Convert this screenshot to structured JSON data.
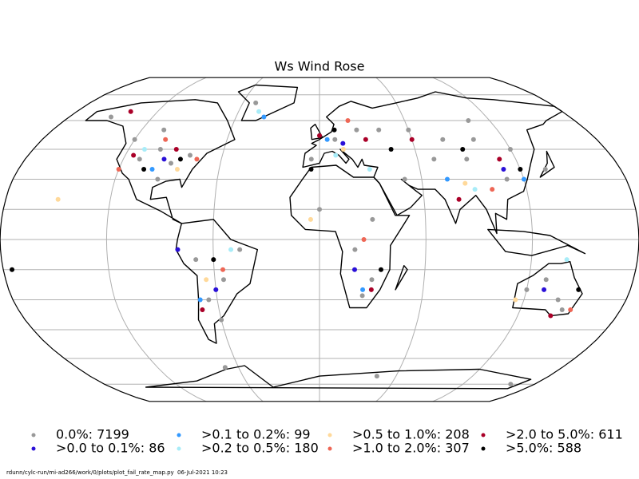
{
  "title": "Ws Wind Rose",
  "map": {
    "projection": "robinson",
    "grid": true
  },
  "categories": [
    {
      "label": "0.0%: 7199",
      "color": "#999999",
      "points": [
        [
          -100,
          45
        ],
        [
          -90,
          38
        ],
        [
          -110,
          40
        ],
        [
          -120,
          50
        ],
        [
          -80,
          42
        ],
        [
          -95,
          30
        ],
        [
          -105,
          55
        ],
        [
          -150,
          62
        ],
        [
          -70,
          -10
        ],
        [
          -55,
          -20
        ],
        [
          -65,
          -30
        ],
        [
          -45,
          -5
        ],
        [
          -60,
          -40
        ],
        [
          10,
          50
        ],
        [
          25,
          55
        ],
        [
          40,
          55
        ],
        [
          60,
          55
        ],
        [
          80,
          50
        ],
        [
          100,
          50
        ],
        [
          120,
          45
        ],
        [
          110,
          30
        ],
        [
          90,
          40
        ],
        [
          70,
          40
        ],
        [
          30,
          10
        ],
        [
          20,
          -5
        ],
        [
          30,
          -20
        ],
        [
          25,
          -28
        ],
        [
          140,
          -30
        ],
        [
          120,
          -25
        ],
        [
          145,
          -35
        ],
        [
          130,
          -20
        ],
        [
          -50,
          70
        ],
        [
          45,
          -70
        ],
        [
          -70,
          -65
        ],
        [
          160,
          -75
        ],
        [
          105,
          60
        ],
        [
          135,
          35
        ],
        [
          0,
          15
        ],
        [
          -5,
          40
        ],
        [
          50,
          30
        ]
      ]
    },
    {
      "label": ">0.0 to 0.1%: 86",
      "color": "#2a10d8",
      "points": [
        [
          -95,
          40
        ],
        [
          15,
          48
        ],
        [
          -60,
          -25
        ],
        [
          110,
          35
        ],
        [
          -80,
          -5
        ],
        [
          130,
          -25
        ],
        [
          20,
          -15
        ]
      ]
    },
    {
      "label": ">0.1 to 0.2%: 99",
      "color": "#3399ff",
      "points": [
        [
          -100,
          35
        ],
        [
          5,
          50
        ],
        [
          -70,
          -30
        ],
        [
          120,
          30
        ],
        [
          25,
          -25
        ],
        [
          -40,
          62
        ],
        [
          75,
          30
        ]
      ]
    },
    {
      "label": ">0.2 to 0.5%: 180",
      "color": "#a8ecf8",
      "points": [
        [
          -110,
          45
        ],
        [
          10,
          42
        ],
        [
          30,
          35
        ],
        [
          -50,
          -5
        ],
        [
          90,
          25
        ],
        [
          140,
          -10
        ],
        [
          -45,
          65
        ]
      ]
    },
    {
      "label": ">0.5 to 1.0%: 208",
      "color": "#ffd99a",
      "points": [
        [
          -85,
          35
        ],
        [
          -150,
          20
        ],
        [
          15,
          45
        ],
        [
          85,
          28
        ],
        [
          -65,
          -20
        ],
        [
          115,
          -30
        ],
        [
          -5,
          10
        ]
      ]
    },
    {
      "label": ">1.0 to 2.0%: 307",
      "color": "#ee6655",
      "points": [
        [
          -100,
          50
        ],
        [
          -75,
          40
        ],
        [
          20,
          60
        ],
        [
          100,
          25
        ],
        [
          -55,
          -15
        ],
        [
          150,
          -35
        ],
        [
          25,
          0
        ],
        [
          -120,
          35
        ]
      ]
    },
    {
      "label": ">2.0 to 5.0%: 611",
      "color": "#aa0028",
      "points": [
        [
          -90,
          45
        ],
        [
          -115,
          42
        ],
        [
          0,
          52
        ],
        [
          30,
          50
        ],
        [
          60,
          50
        ],
        [
          110,
          40
        ],
        [
          -70,
          -35
        ],
        [
          140,
          -38
        ],
        [
          30,
          -25
        ],
        [
          80,
          20
        ],
        [
          -140,
          65
        ]
      ]
    },
    {
      "label": ">5.0%: 588",
      "color": "#000000",
      "points": [
        [
          -85,
          40
        ],
        [
          -105,
          35
        ],
        [
          10,
          55
        ],
        [
          45,
          45
        ],
        [
          90,
          45
        ],
        [
          120,
          35
        ],
        [
          -60,
          -10
        ],
        [
          150,
          -25
        ],
        [
          35,
          -15
        ],
        [
          -175,
          -15
        ],
        [
          -5,
          35
        ]
      ]
    }
  ],
  "footer": {
    "path": "rdunn/cylc-run/mi-ad266/work/0/plots/plot_fail_rate_map.py",
    "date": "06-Jul-2021 10:23"
  }
}
